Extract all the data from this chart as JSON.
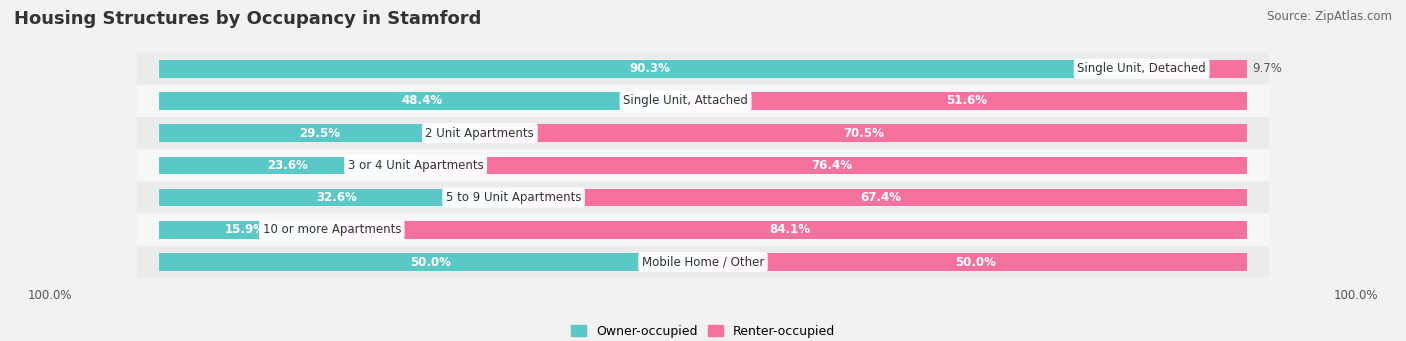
{
  "title": "Housing Structures by Occupancy in Stamford",
  "source": "Source: ZipAtlas.com",
  "categories": [
    "Single Unit, Detached",
    "Single Unit, Attached",
    "2 Unit Apartments",
    "3 or 4 Unit Apartments",
    "5 to 9 Unit Apartments",
    "10 or more Apartments",
    "Mobile Home / Other"
  ],
  "owner_pct": [
    90.3,
    48.4,
    29.5,
    23.6,
    32.6,
    15.9,
    50.0
  ],
  "renter_pct": [
    9.7,
    51.6,
    70.5,
    76.4,
    67.4,
    84.1,
    50.0
  ],
  "owner_color": "#5bc8c8",
  "renter_color": "#f572a0",
  "renter_color_light": "#f9b8d0",
  "bg_color": "#f2f2f2",
  "row_bg_even": "#ebebeb",
  "row_bg_odd": "#f7f7f7",
  "bar_bg_color": "#ffffff",
  "title_fontsize": 13,
  "source_fontsize": 8.5,
  "label_fontsize": 8.5,
  "category_fontsize": 8.5,
  "legend_fontsize": 9,
  "bar_height": 0.55,
  "white_label_threshold": 12.0
}
